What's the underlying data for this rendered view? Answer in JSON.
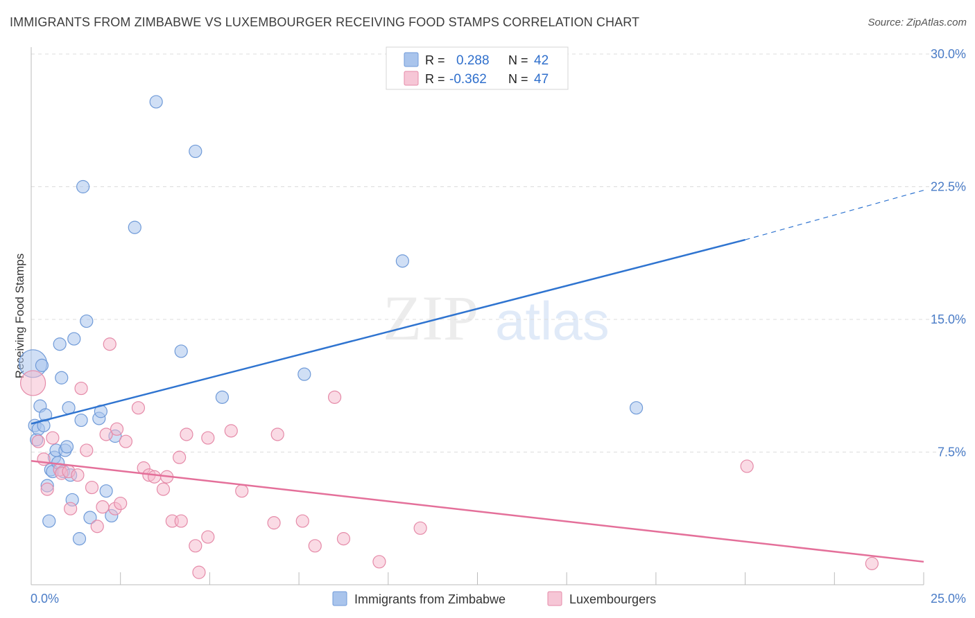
{
  "header": {
    "title": "IMMIGRANTS FROM ZIMBABWE VS LUXEMBOURGER RECEIVING FOOD STAMPS CORRELATION CHART",
    "source": "Source: ZipAtlas.com"
  },
  "watermark": {
    "zip": "ZIP",
    "atlas": "atlas"
  },
  "legend": {
    "rows": [
      {
        "r_label": "R =",
        "r_value": "0.288",
        "n_label": "N =",
        "n_value": "42"
      },
      {
        "r_label": "R =",
        "r_value": "-0.362",
        "n_label": "N =",
        "n_value": "47"
      }
    ]
  },
  "bottom_legend": {
    "series1": "Immigrants from Zimbabwe",
    "series2": "Luxembourgers"
  },
  "colors": {
    "blue_fill": "#a9c4ec",
    "blue_stroke": "#6f9ad8",
    "blue_line": "#2f74d0",
    "pink_fill": "#f6b8cc",
    "pink_stroke": "#e58aa8",
    "pink_line": "#e4709a",
    "grid": "#dcdcdc"
  },
  "chart_data": {
    "type": "scatter",
    "xlabel": "",
    "ylabel": "Receiving Food Stamps",
    "xlim": [
      0,
      25
    ],
    "ylim": [
      0,
      30
    ],
    "x_tick_labels": [
      "0.0%",
      "25.0%"
    ],
    "y_ticks": [
      7.5,
      15.0,
      22.5,
      30.0
    ],
    "y_tick_labels": [
      "7.5%",
      "15.0%",
      "22.5%",
      "30.0%"
    ],
    "grid": true,
    "series": [
      {
        "name": "Immigrants from Zimbabwe",
        "r": 0.288,
        "n": 42,
        "trend": {
          "x0": 0,
          "y0": 9.1,
          "x1": 20,
          "y1": 19.5,
          "dashed_to_x": 25,
          "dashed_to_y": 22.3
        },
        "points": [
          [
            0.05,
            12.5,
            20
          ],
          [
            0.1,
            9.0,
            9
          ],
          [
            0.15,
            8.2,
            9
          ],
          [
            0.2,
            8.8,
            9
          ],
          [
            0.25,
            10.1,
            9
          ],
          [
            0.3,
            12.4,
            9
          ],
          [
            0.35,
            9.0,
            9
          ],
          [
            0.4,
            9.6,
            9
          ],
          [
            0.45,
            5.6,
            9
          ],
          [
            0.5,
            3.6,
            9
          ],
          [
            0.55,
            6.5,
            9
          ],
          [
            0.6,
            6.4,
            9
          ],
          [
            0.65,
            7.2,
            9
          ],
          [
            0.7,
            7.6,
            9
          ],
          [
            0.75,
            6.9,
            9
          ],
          [
            0.8,
            13.6,
            9
          ],
          [
            0.85,
            11.7,
            9
          ],
          [
            0.9,
            6.4,
            9
          ],
          [
            0.95,
            7.6,
            9
          ],
          [
            1.0,
            7.8,
            9
          ],
          [
            1.05,
            10.0,
            9
          ],
          [
            1.1,
            6.2,
            9
          ],
          [
            1.15,
            4.8,
            9
          ],
          [
            1.2,
            13.9,
            9
          ],
          [
            1.35,
            2.6,
            9
          ],
          [
            1.4,
            9.3,
            9
          ],
          [
            1.45,
            22.5,
            9
          ],
          [
            1.55,
            14.9,
            9
          ],
          [
            1.65,
            3.8,
            9
          ],
          [
            1.9,
            9.4,
            9
          ],
          [
            1.95,
            9.8,
            9
          ],
          [
            2.1,
            5.3,
            9
          ],
          [
            2.25,
            3.9,
            9
          ],
          [
            2.35,
            8.4,
            9
          ],
          [
            2.9,
            20.2,
            9
          ],
          [
            3.5,
            27.3,
            9
          ],
          [
            4.2,
            13.2,
            9
          ],
          [
            4.6,
            24.5,
            9
          ],
          [
            5.35,
            10.6,
            9
          ],
          [
            7.65,
            11.9,
            9
          ],
          [
            10.4,
            18.3,
            9
          ],
          [
            16.95,
            10.0,
            9
          ]
        ]
      },
      {
        "name": "Luxembourgers",
        "r": -0.362,
        "n": 47,
        "trend": {
          "x0": 0,
          "y0": 7.0,
          "x1": 25,
          "y1": 1.3
        },
        "points": [
          [
            0.05,
            11.4,
            18
          ],
          [
            0.2,
            8.1,
            9
          ],
          [
            0.35,
            7.1,
            9
          ],
          [
            0.45,
            5.4,
            9
          ],
          [
            0.6,
            8.3,
            9
          ],
          [
            0.8,
            6.5,
            9
          ],
          [
            0.85,
            6.3,
            9
          ],
          [
            1.05,
            6.4,
            9
          ],
          [
            1.1,
            4.3,
            9
          ],
          [
            1.3,
            6.2,
            9
          ],
          [
            1.4,
            11.1,
            9
          ],
          [
            1.55,
            7.6,
            9
          ],
          [
            1.7,
            5.5,
            9
          ],
          [
            1.85,
            3.3,
            9
          ],
          [
            2.0,
            4.4,
            9
          ],
          [
            2.1,
            8.5,
            9
          ],
          [
            2.2,
            13.6,
            9
          ],
          [
            2.35,
            4.3,
            9
          ],
          [
            2.4,
            8.8,
            9
          ],
          [
            2.5,
            4.6,
            9
          ],
          [
            2.65,
            8.1,
            9
          ],
          [
            3.0,
            10.0,
            9
          ],
          [
            3.15,
            6.6,
            9
          ],
          [
            3.3,
            6.2,
            9
          ],
          [
            3.45,
            6.1,
            9
          ],
          [
            3.7,
            5.4,
            9
          ],
          [
            3.8,
            6.1,
            9
          ],
          [
            3.95,
            3.6,
            9
          ],
          [
            4.15,
            7.2,
            9
          ],
          [
            4.2,
            3.6,
            9
          ],
          [
            4.35,
            8.5,
            9
          ],
          [
            4.6,
            2.2,
            9
          ],
          [
            4.7,
            0.7,
            9
          ],
          [
            4.95,
            2.7,
            9
          ],
          [
            4.95,
            8.3,
            9
          ],
          [
            5.6,
            8.7,
            9
          ],
          [
            5.9,
            5.3,
            9
          ],
          [
            6.8,
            3.5,
            9
          ],
          [
            6.9,
            8.5,
            9
          ],
          [
            7.6,
            3.6,
            9
          ],
          [
            7.95,
            2.2,
            9
          ],
          [
            8.5,
            10.6,
            9
          ],
          [
            8.75,
            2.6,
            9
          ],
          [
            9.75,
            1.3,
            9
          ],
          [
            10.9,
            3.2,
            9
          ],
          [
            20.05,
            6.7,
            9
          ],
          [
            23.55,
            1.2,
            9
          ]
        ]
      }
    ]
  }
}
